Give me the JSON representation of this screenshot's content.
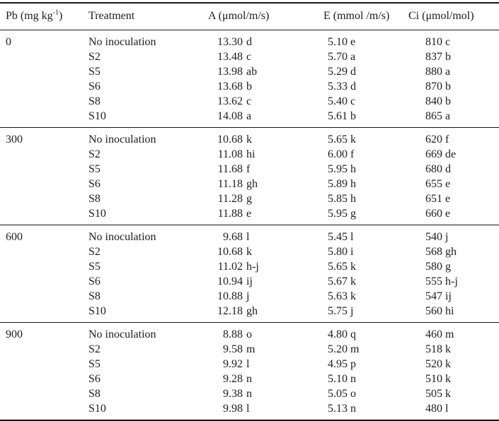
{
  "colors": {
    "background": "#ffffff",
    "text": "#1c1c1c",
    "rule": "#161616"
  },
  "table": {
    "header": {
      "pb_prefix": "Pb (mg kg",
      "pb_sup": "-1",
      "pb_suffix": ")",
      "treatment": "Treatment",
      "a": "A (μmol/m/s)",
      "e": "E (mmol /m/s)",
      "ci": "Ci (μmol/mol)"
    },
    "groups": [
      {
        "pb": "0",
        "rows": [
          {
            "treatment": "No inoculation",
            "a_value": "13.30",
            "a_letters": "d",
            "e": "5.10 e",
            "ci": "810 c"
          },
          {
            "treatment": "S2",
            "a_value": "13.48",
            "a_letters": "c",
            "e": "5.70 a",
            "ci": "837 b"
          },
          {
            "treatment": "S5",
            "a_value": "13.98",
            "a_letters": "ab",
            "e": "5.29 d",
            "ci": "880 a"
          },
          {
            "treatment": "S6",
            "a_value": "13.68",
            "a_letters": "b",
            "e": "5.33 d",
            "ci": "870 b"
          },
          {
            "treatment": "S8",
            "a_value": "13.62",
            "a_letters": "c",
            "e": "5.40 c",
            "ci": "840 b"
          },
          {
            "treatment": "S10",
            "a_value": "14.08",
            "a_letters": "a",
            "e": "5.61 b",
            "ci": "865 a"
          }
        ]
      },
      {
        "pb": "300",
        "rows": [
          {
            "treatment": "No inoculation",
            "a_value": "10.68",
            "a_letters": "k",
            "e": "5.65 k",
            "ci": "620 f"
          },
          {
            "treatment": "S2",
            "a_value": "11.08",
            "a_letters": "hi",
            "e": "6.00 f",
            "ci": "669 de"
          },
          {
            "treatment": "S5",
            "a_value": "11.68",
            "a_letters": "f",
            "e": "5.95 h",
            "ci": "680 d"
          },
          {
            "treatment": "S6",
            "a_value": "11.18",
            "a_letters": "gh",
            "e": "5.89 h",
            "ci": "655 e"
          },
          {
            "treatment": "S8",
            "a_value": "11.28",
            "a_letters": "g",
            "e": "5.85 h",
            "ci": "651 e"
          },
          {
            "treatment": "S10",
            "a_value": "11.88",
            "a_letters": "e",
            "e": "5.95 g",
            "ci": "660 e"
          }
        ]
      },
      {
        "pb": "600",
        "rows": [
          {
            "treatment": "No inoculation",
            "a_value": "9.68",
            "a_letters": "l",
            "e": "5.45 l",
            "ci": "540 j"
          },
          {
            "treatment": "S2",
            "a_value": "10.68",
            "a_letters": "k",
            "e": "5.80 i",
            "ci": "568 gh"
          },
          {
            "treatment": "S5",
            "a_value": "11.02",
            "a_letters": "h-j",
            "e": "5.65 k",
            "ci": "580 g"
          },
          {
            "treatment": "S6",
            "a_value": "10.94",
            "a_letters": "ij",
            "e": "5.67 k",
            "ci": "555 h-j"
          },
          {
            "treatment": "S8",
            "a_value": "10.88",
            "a_letters": "j",
            "e": "5.63 k",
            "ci": "547 ij"
          },
          {
            "treatment": "S10",
            "a_value": "12.18",
            "a_letters": "gh",
            "e": "5.75 j",
            "ci": "560 hi"
          }
        ]
      },
      {
        "pb": "900",
        "rows": [
          {
            "treatment": "No inoculation",
            "a_value": "8.88",
            "a_letters": "o",
            "e": "4.80 q",
            "ci": "460 m"
          },
          {
            "treatment": "S2",
            "a_value": "9.58",
            "a_letters": "m",
            "e": "5.20 m",
            "ci": "518 k"
          },
          {
            "treatment": "S5",
            "a_value": "9.92",
            "a_letters": "l",
            "e": "4.95 p",
            "ci": "520 k"
          },
          {
            "treatment": "S6",
            "a_value": "9.28",
            "a_letters": "n",
            "e": "5.10 n",
            "ci": "510 k"
          },
          {
            "treatment": "S8",
            "a_value": "9.38",
            "a_letters": "n",
            "e": "5.05 o",
            "ci": "505 k"
          },
          {
            "treatment": "S10",
            "a_value": "9.98",
            "a_letters": "l",
            "e": "5.13 n",
            "ci": "480 l"
          }
        ]
      }
    ]
  }
}
